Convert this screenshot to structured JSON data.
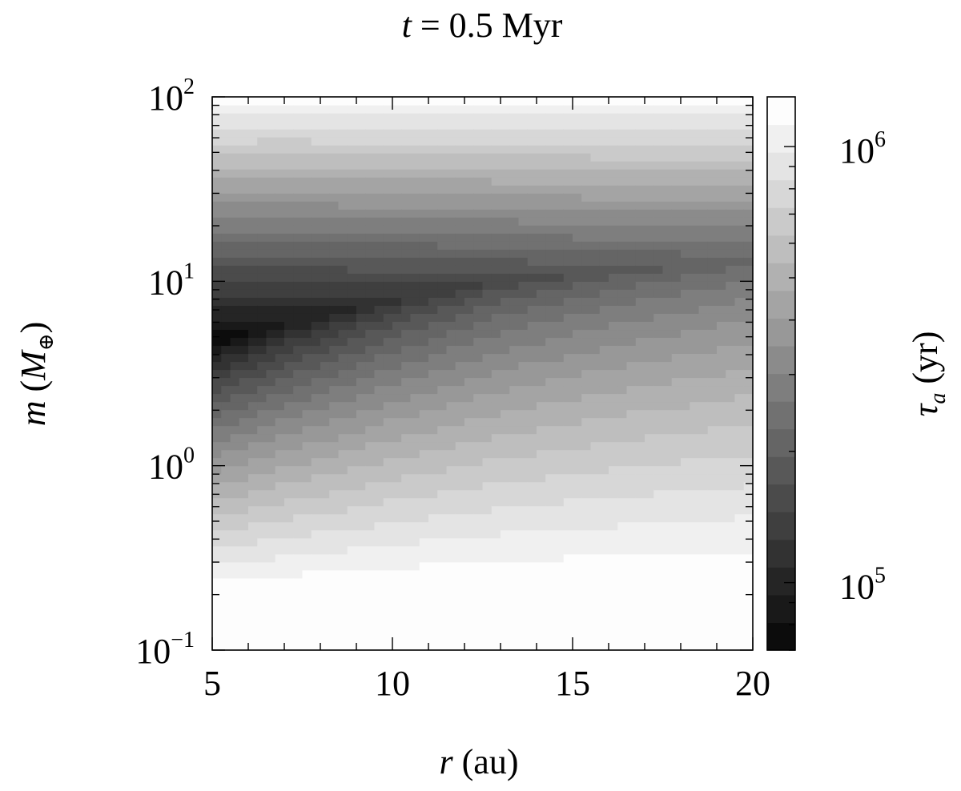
{
  "chart_data": {
    "type": "heatmap",
    "title": {
      "var": "t",
      "rest": " = 0.5 Myr"
    },
    "xlabel": {
      "var": "r",
      "rest": " (au)"
    },
    "ylabel": {
      "var": "m",
      "rest": " (",
      "sym": "M",
      "sub": "⊕",
      "close": ")"
    },
    "colorbar_label": {
      "var": "τ",
      "sub": "a",
      "rest": " (yr)"
    },
    "x_range": [
      5,
      20
    ],
    "y_range": [
      0.1,
      100
    ],
    "y_scale": "log",
    "x_ticks": [
      {
        "value": 5,
        "label": "5"
      },
      {
        "value": 10,
        "label": "10"
      },
      {
        "value": 15,
        "label": "15"
      },
      {
        "value": 20,
        "label": "20"
      }
    ],
    "y_ticks": [
      {
        "value": 0.1,
        "base": "10",
        "exp": "−1"
      },
      {
        "value": 1,
        "base": "10",
        "exp": "0"
      },
      {
        "value": 10,
        "base": "10",
        "exp": "1"
      },
      {
        "value": 100,
        "base": "10",
        "exp": "2"
      }
    ],
    "colorbar_range": [
      70000,
      1300000
    ],
    "colorbar_scale": "log",
    "colorbar_ticks": [
      {
        "value": 100000,
        "base": "10",
        "exp": "5"
      },
      {
        "value": 1000000,
        "base": "10",
        "exp": "6"
      }
    ],
    "colormap": "grayscale (black = low, white = high)",
    "color_levels": 20,
    "grid": false,
    "trough_ridge": [
      {
        "r": 5.0,
        "m": 4.6,
        "tau": 72000
      },
      {
        "r": 7.0,
        "m": 5.8,
        "tau": 88000
      },
      {
        "r": 10.0,
        "m": 7.8,
        "tau": 118000
      },
      {
        "r": 13.0,
        "m": 9.8,
        "tau": 150000
      },
      {
        "r": 16.0,
        "m": 11.0,
        "tau": 180000
      },
      {
        "r": 20.0,
        "m": 13.0,
        "tau": 210000
      }
    ],
    "upper_edge_tau": 1200000,
    "lower_edge_tau": 1300000
  }
}
